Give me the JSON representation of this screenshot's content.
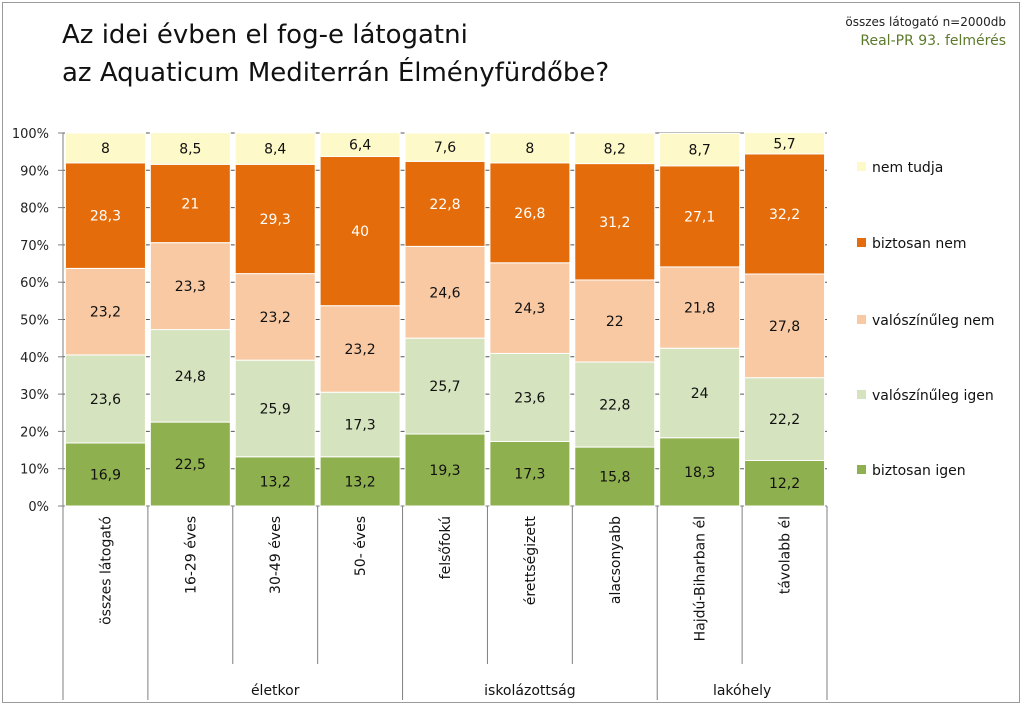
{
  "header": {
    "title_line1": "Az idei évben el fog-e látogatni",
    "title_line2": "az Aquaticum Mediterrán Élményfürdőbe?",
    "note_line1": "összes látogató n=2000db",
    "note_line2": "Real-PR 93. felmérés"
  },
  "chart_data": {
    "type": "bar",
    "stacked": true,
    "title": "Az idei évben el fog-e látogatni az Aquaticum Mediterrán Élményfürdőbe?",
    "categories": [
      "összes látogató",
      "16-29 éves",
      "30-49 éves",
      "50- éves",
      "felsőfokú",
      "érettségizett",
      "alacsonyabb",
      "Hajdú-Biharban él",
      "távolabb él"
    ],
    "groups": [
      {
        "label": "életkor",
        "from": 1,
        "to": 3
      },
      {
        "label": "iskolázottság",
        "from": 4,
        "to": 6
      },
      {
        "label": "lakóhely",
        "from": 7,
        "to": 8
      }
    ],
    "series": [
      {
        "name": "biztosan igen",
        "color": "#8fb04f",
        "values": [
          16.9,
          22.5,
          13.2,
          13.2,
          19.3,
          17.3,
          15.8,
          18.3,
          12.2
        ]
      },
      {
        "name": "valószínűleg igen",
        "color": "#d6e3bf",
        "values": [
          23.6,
          24.8,
          25.9,
          17.3,
          25.7,
          23.6,
          22.8,
          24,
          22.2
        ]
      },
      {
        "name": "valószínűleg nem",
        "color": "#f9c9a3",
        "values": [
          23.2,
          23.3,
          23.2,
          23.2,
          24.6,
          24.3,
          22,
          21.8,
          27.8
        ]
      },
      {
        "name": "biztosan nem",
        "color": "#e46c0a",
        "values": [
          28.3,
          21,
          29.3,
          40,
          22.8,
          26.8,
          31.2,
          27.1,
          32.2
        ]
      },
      {
        "name": "nem tudja",
        "color": "#fdf9c8",
        "values": [
          8,
          8.5,
          8.4,
          6.4,
          7.6,
          8,
          8.2,
          8.7,
          5.7
        ]
      }
    ],
    "value_labels": [
      [
        "16,9",
        "22,5",
        "13,2",
        "13,2",
        "19,3",
        "17,3",
        "15,8",
        "18,3",
        "12,2"
      ],
      [
        "23,6",
        "24,8",
        "25,9",
        "17,3",
        "25,7",
        "23,6",
        "22,8",
        "24",
        "22,2"
      ],
      [
        "23,2",
        "23,3",
        "23,2",
        "23,2",
        "24,6",
        "24,3",
        "22",
        "21,8",
        "27,8"
      ],
      [
        "28,3",
        "21",
        "29,3",
        "40",
        "22,8",
        "26,8",
        "31,2",
        "27,1",
        "32,2"
      ],
      [
        "8",
        "8,5",
        "8,4",
        "6,4",
        "7,6",
        "8",
        "8,2",
        "8,7",
        "5,7"
      ]
    ],
    "label_text_colors": [
      "#111111",
      "#111111",
      "#111111",
      "#ffffff",
      "#111111"
    ],
    "ylim": [
      0,
      100
    ],
    "y_ticks": [
      "0%",
      "10%",
      "20%",
      "30%",
      "40%",
      "50%",
      "60%",
      "70%",
      "80%",
      "90%",
      "100%"
    ],
    "grid": true,
    "legend_position": "right"
  }
}
